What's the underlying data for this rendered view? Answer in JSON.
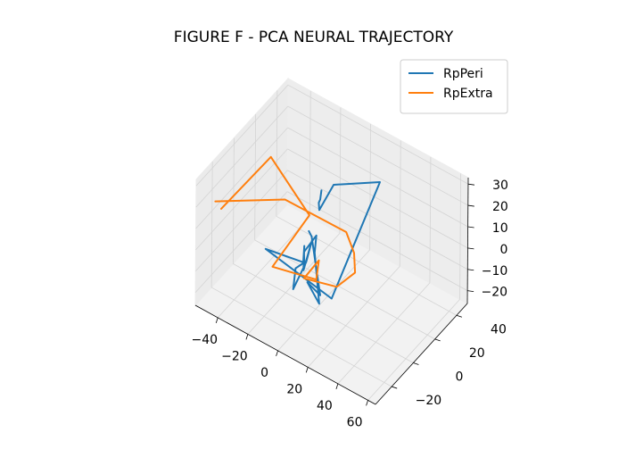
{
  "chart_data": {
    "type": "line",
    "projection": "3d",
    "title": "FIGURE F - PCA NEURAL TRAJECTORY",
    "xlabel": "",
    "ylabel": "",
    "zlabel": "",
    "xlim": [
      -55,
      65
    ],
    "ylim": [
      -35,
      50
    ],
    "zlim": [
      -26,
      33
    ],
    "x_ticks": [
      "−40",
      "−20",
      "0",
      "20",
      "40",
      "60"
    ],
    "y_ticks": [
      "−20",
      "0",
      "20",
      "40"
    ],
    "z_ticks": [
      "−20",
      "−10",
      "0",
      "10",
      "20",
      "30"
    ],
    "grid": true,
    "legend_position": "upper right",
    "series": [
      {
        "name": "RpPeri",
        "color": "#1f77b4",
        "x": [
          -14.7,
          -15.2,
          -15.5,
          -14.7,
          -8.1,
          15.9,
          16.1,
          -33.6,
          -9.7,
          -11.7,
          -6.8,
          -11.7,
          -10.1,
          -9.0,
          -12.0,
          -8.8,
          -10.7,
          -9.3,
          -5.9,
          5.3,
          -5.1,
          7.6,
          -10.3,
          -14.4
        ],
        "y": [
          25.2,
          24.8,
          23.9,
          23.3,
          27.3,
          36.7,
          -7.9,
          0.1,
          1.7,
          5.4,
          -2.1,
          12.7,
          5.0,
          -8.5,
          -2.2,
          1.4,
          3.7,
          13.2,
          6.9,
          -4.2,
          -0.8,
          -6.6,
          10.2,
          13.3
        ],
        "z": [
          10.0,
          5.7,
          4.6,
          1.8,
          14.0,
          19.3,
          -10.4,
          -10.8,
          -8.7,
          -3.9,
          -9.2,
          -5.0,
          -10.6,
          -15.4,
          -10.3,
          -8.3,
          -5.4,
          -2.4,
          -5.6,
          -19.1,
          -14.9,
          -12.9,
          -1.6,
          -2.4
        ]
      },
      {
        "name": "RpExtra",
        "color": "#ff7f0e",
        "x": [
          -48.0,
          -14.1,
          13.7,
          16.1,
          21.1,
          10.4,
          -5.2,
          -5.5,
          -0.8,
          -29.7,
          -33.5,
          -59.0,
          -44.2
        ],
        "y": [
          -26.9,
          -9.6,
          8.7,
          12.8,
          6.8,
          4.9,
          -3.9,
          10.3,
          1.4,
          1.1,
          40.6,
          40.1,
          -26.7
        ],
        "z": [
          20.9,
          25.3,
          10.6,
          -0.5,
          -4.5,
          -14.2,
          -11.4,
          -11.0,
          -13.2,
          -18.2,
          -17.5,
          0.2,
          18.8
        ]
      }
    ]
  }
}
